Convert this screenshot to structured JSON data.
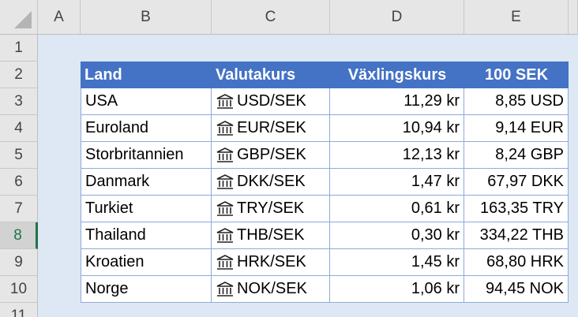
{
  "columns": [
    "A",
    "B",
    "C",
    "D",
    "E"
  ],
  "rows": [
    "1",
    "2",
    "3",
    "4",
    "5",
    "6",
    "7",
    "8",
    "9",
    "10",
    "11"
  ],
  "table": {
    "header": [
      "Land",
      "Valutakurs",
      "Växlingskurs",
      "100 SEK"
    ],
    "rows": [
      [
        "USA",
        "USD/SEK",
        "11,29 kr",
        "8,85 USD"
      ],
      [
        "Euroland",
        "EUR/SEK",
        "10,94 kr",
        "9,14 EUR"
      ],
      [
        "Storbritannien",
        "GBP/SEK",
        "12,13 kr",
        "8,24 GBP"
      ],
      [
        "Danmark",
        "DKK/SEK",
        "1,47 kr",
        "67,97 DKK"
      ],
      [
        "Turkiet",
        "TRY/SEK",
        "0,61 kr",
        "163,35 TRY"
      ],
      [
        "Thailand",
        "THB/SEK",
        "0,30 kr",
        "334,22 THB"
      ],
      [
        "Kroatien",
        "HRK/SEK",
        "1,45 kr",
        "68,80 HRK"
      ],
      [
        "Norge",
        "NOK/SEK",
        "1,06 kr",
        "94,45 NOK"
      ]
    ]
  }
}
